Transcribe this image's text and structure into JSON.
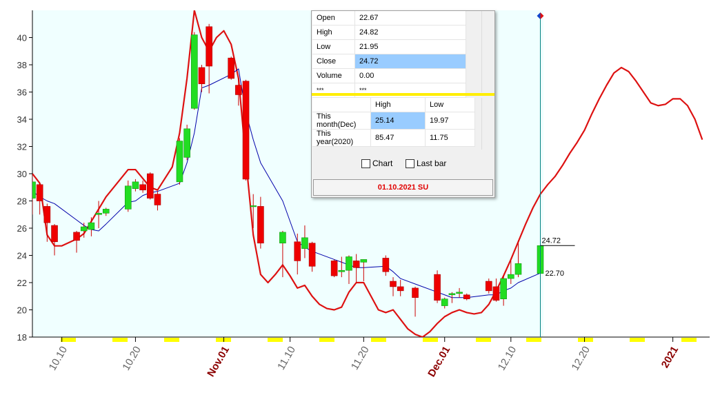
{
  "chart_data": {
    "type": "candlestick",
    "x": [
      "10.06",
      "10.07",
      "10.08",
      "10.09",
      "10.12",
      "10.13",
      "10.14",
      "10.15",
      "10.16",
      "10.19",
      "10.20",
      "10.21",
      "10.22",
      "10.23",
      "10.26",
      "10.27",
      "10.28",
      "10.29",
      "10.30",
      "11.02",
      "11.03",
      "11.04",
      "11.05",
      "11.06",
      "11.09",
      "11.11",
      "11.12",
      "11.13",
      "11.16",
      "11.17",
      "11.18",
      "11.19",
      "11.20",
      "11.23",
      "11.24",
      "11.25",
      "11.27",
      "11.30",
      "12.01",
      "12.02",
      "12.03",
      "12.04",
      "12.07",
      "12.08",
      "12.09",
      "12.10",
      "12.11",
      "12.14"
    ],
    "open": [
      28.2,
      29.2,
      27.6,
      26.2,
      25.7,
      25.8,
      25.9,
      27.0,
      27.1,
      27.4,
      28.9,
      29.2,
      30.0,
      28.5,
      29.4,
      31.2,
      34.8,
      37.8,
      40.8,
      38.5,
      36.5,
      36.8,
      27.6,
      27.6,
      24.9,
      25.0,
      24.5,
      24.9,
      23.6,
      22.8,
      22.9,
      23.6,
      23.5,
      23.8,
      22.1,
      21.7,
      21.6,
      22.6,
      20.3,
      21.1,
      21.2,
      21.1,
      22.1,
      21.7,
      20.8,
      22.3,
      22.6,
      22.67
    ],
    "high": [
      30.0,
      29.3,
      27.8,
      26.3,
      25.8,
      26.4,
      26.8,
      28.0,
      27.5,
      29.5,
      29.6,
      29.5,
      30.1,
      28.7,
      32.6,
      33.6,
      40.4,
      38.0,
      41.0,
      38.6,
      37.0,
      36.9,
      28.5,
      28.3,
      25.8,
      25.6,
      26.2,
      25.0,
      23.7,
      23.9,
      24.0,
      24.1,
      23.7,
      24.0,
      22.4,
      22.2,
      21.7,
      22.9,
      20.9,
      21.3,
      21.6,
      21.2,
      22.3,
      22.3,
      22.5,
      23.6,
      25.1,
      24.82
    ],
    "low": [
      27.0,
      27.0,
      25.0,
      24.0,
      24.2,
      25.3,
      25.4,
      26.0,
      26.9,
      27.2,
      28.7,
      28.6,
      28.1,
      27.3,
      29.2,
      31.0,
      34.7,
      36.0,
      35.9,
      36.9,
      35.0,
      29.5,
      26.0,
      24.5,
      22.4,
      22.6,
      23.8,
      22.8,
      22.4,
      22.4,
      21.9,
      22.0,
      22.1,
      22.5,
      21.0,
      21.0,
      19.5,
      20.5,
      20.1,
      20.5,
      20.9,
      20.7,
      21.2,
      20.6,
      20.3,
      21.9,
      22.4,
      21.95
    ],
    "close": [
      29.4,
      28.0,
      26.4,
      25.0,
      25.1,
      26.1,
      26.4,
      27.1,
      27.4,
      29.1,
      29.4,
      28.8,
      28.2,
      27.7,
      32.4,
      33.3,
      40.2,
      36.6,
      37.9,
      37.0,
      35.8,
      29.6,
      27.65,
      24.9,
      25.7,
      23.6,
      25.3,
      23.2,
      22.5,
      22.9,
      23.9,
      23.1,
      23.7,
      22.8,
      21.7,
      21.4,
      20.9,
      20.7,
      20.8,
      21.2,
      21.3,
      20.8,
      21.4,
      20.7,
      22.3,
      22.6,
      23.4,
      24.72
    ],
    "up_color": "#22dd22",
    "down_color": "#ee0000",
    "wick_color": "#cc0000",
    "ma": {
      "color": "#0000aa",
      "values": [
        28.7,
        28.3,
        28.0,
        27.8,
        26.6,
        26.2,
        25.9,
        25.8,
        26.3,
        27.9,
        28.0,
        28.4,
        28.6,
        28.7,
        29.3,
        30.8,
        33.0,
        36.3,
        36.5,
        37.3,
        37.7,
        34.5,
        32.5,
        30.8,
        28.0,
        25.0,
        24.6,
        24.3,
        23.7,
        23.5,
        23.3,
        23.1,
        23.1,
        23.2,
        22.8,
        22.3,
        21.9,
        21.3,
        21.1,
        20.9,
        20.9,
        20.9,
        21.1,
        21.1,
        21.4,
        21.6,
        22.0,
        22.7
      ],
      "value_labels": [
        null,
        null,
        null,
        null,
        null,
        null,
        null,
        null,
        null,
        null,
        null,
        null,
        null,
        null,
        null,
        null,
        null,
        null,
        null,
        null,
        null,
        null,
        null,
        null,
        null,
        null,
        null,
        null,
        null,
        null,
        null,
        null,
        null,
        null,
        null,
        null,
        null,
        null,
        null,
        null,
        null,
        null,
        null,
        null,
        null,
        null,
        null,
        "22.70"
      ]
    },
    "forecast": {
      "color": "#dd1111",
      "x": [
        "10.06",
        "10.07",
        "10.08",
        "10.09",
        "10.10",
        "10.12",
        "10.13",
        "10.14",
        "10.16",
        "10.19",
        "10.20",
        "10.22",
        "10.23",
        "10.25",
        "10.26",
        "10.27",
        "10.28",
        "10.29",
        "10.30",
        "10.31",
        "11.01",
        "11.02",
        "11.03",
        "11.04",
        "11.05",
        "11.06",
        "11.07",
        "11.08",
        "11.09",
        "11.10",
        "11.11",
        "11.12",
        "11.13",
        "11.14",
        "11.15",
        "11.16",
        "11.17",
        "11.18",
        "11.19",
        "11.20",
        "11.21",
        "11.22",
        "11.23",
        "11.24",
        "11.25",
        "11.26",
        "11.27",
        "11.28",
        "11.29",
        "11.30",
        "12.01",
        "12.02",
        "12.03",
        "12.04",
        "12.05",
        "12.06",
        "12.07",
        "12.08",
        "12.09",
        "12.10",
        "12.11",
        "12.12",
        "12.13",
        "12.14",
        "12.15",
        "12.16",
        "12.17",
        "12.18",
        "12.19",
        "12.20",
        "12.21",
        "12.22",
        "12.23",
        "12.24",
        "12.25",
        "12.26",
        "12.27",
        "12.28",
        "12.29",
        "12.30",
        "12.31",
        "01.01",
        "01.02",
        "01.03",
        "01.04",
        "01.05"
      ],
      "values": [
        30.0,
        29.3,
        25.5,
        24.7,
        24.7,
        25.2,
        25.6,
        26.5,
        28.3,
        30.3,
        30.3,
        29.0,
        28.8,
        30.5,
        33.0,
        37.0,
        42.0,
        40.0,
        39.0,
        40.0,
        40.5,
        39.5,
        37.0,
        31.0,
        25.5,
        22.6,
        22.0,
        22.6,
        23.3,
        22.5,
        21.6,
        21.8,
        21.0,
        20.4,
        20.1,
        20.0,
        20.2,
        21.3,
        22.0,
        22.0,
        21.0,
        20.0,
        19.8,
        20.0,
        19.3,
        18.6,
        18.2,
        18.0,
        18.4,
        19.0,
        19.5,
        19.8,
        20.0,
        19.8,
        19.7,
        19.8,
        20.4,
        21.4,
        22.5,
        23.7,
        25.0,
        26.3,
        27.5,
        28.5,
        29.2,
        29.8,
        30.6,
        31.5,
        32.3,
        33.2,
        34.4,
        35.5,
        36.5,
        37.4,
        37.8,
        37.5,
        36.8,
        36.0,
        35.2,
        35.0,
        35.1,
        35.5,
        35.5,
        35.0,
        34.0,
        32.5
      ]
    },
    "xlim": [
      "10.06",
      "01.06"
    ],
    "xticks": [
      "10.10",
      "10.20",
      {
        "value": "11.01",
        "label": "Nov.01"
      },
      "11.10",
      "11.20",
      {
        "value": "12.01",
        "label": "Dec.01"
      },
      "12.10",
      "12.20",
      {
        "value": "01.01",
        "label": "2021"
      }
    ],
    "ylim": [
      18,
      42
    ],
    "yticks": [
      18,
      20,
      22,
      24,
      26,
      28,
      30,
      32,
      34,
      36,
      38,
      40
    ]
  },
  "panel": {
    "quote": [
      [
        "Open",
        "22.67"
      ],
      [
        "High",
        "24.82"
      ],
      [
        "Low",
        "21.95"
      ],
      [
        "Close",
        "24.72"
      ],
      [
        "Volume",
        "0.00"
      ],
      [
        "***",
        "***"
      ]
    ],
    "stats": {
      "columns": [
        "High",
        "Low"
      ],
      "rows": [
        [
          "This month(Dec)",
          "25.14",
          "19.97"
        ],
        [
          "This year(2020)",
          "85.47",
          "11.75"
        ]
      ]
    },
    "checkboxes": [
      "Chart",
      "Last bar"
    ],
    "footer": "01.10.2021 SU"
  }
}
